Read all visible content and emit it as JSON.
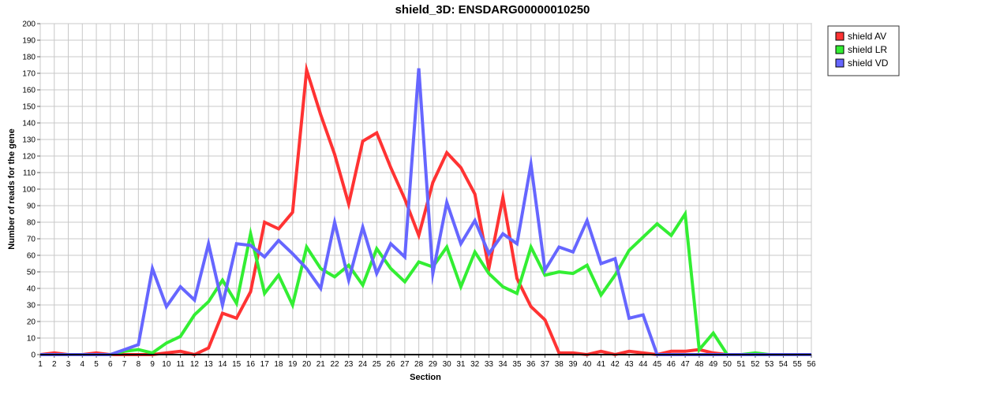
{
  "chart_data": {
    "type": "line",
    "title": "shield_3D: ENSDARG00000010250",
    "xlabel": "Section",
    "ylabel": "Number of reads for the gene",
    "xlim": [
      1,
      56
    ],
    "ylim": [
      0,
      200
    ],
    "y_tick_step": 10,
    "grid": true,
    "legend_placement": "top-right outside",
    "x": [
      1,
      2,
      3,
      4,
      5,
      6,
      7,
      8,
      9,
      10,
      11,
      12,
      13,
      14,
      15,
      16,
      17,
      18,
      19,
      20,
      21,
      22,
      23,
      24,
      25,
      26,
      27,
      28,
      29,
      30,
      31,
      32,
      33,
      34,
      35,
      36,
      37,
      38,
      39,
      40,
      41,
      42,
      43,
      44,
      45,
      46,
      47,
      48,
      49,
      50,
      51,
      52,
      53,
      54,
      55,
      56
    ],
    "series": [
      {
        "name": "shield AV",
        "color": "#ff3333",
        "values": [
          0,
          1,
          0,
          0,
          1,
          0,
          0,
          0,
          0,
          1,
          2,
          0,
          4,
          25,
          22,
          38,
          80,
          76,
          86,
          172,
          145,
          121,
          91,
          129,
          134,
          113,
          94,
          72,
          104,
          122,
          113,
          97,
          52,
          95,
          46,
          29,
          21,
          1,
          1,
          0,
          2,
          0,
          2,
          1,
          0,
          2,
          2,
          3,
          1,
          0,
          0,
          0,
          0,
          0,
          0,
          0
        ]
      },
      {
        "name": "shield LR",
        "color": "#33ee33",
        "values": [
          0,
          0,
          0,
          0,
          0,
          0,
          2,
          3,
          1,
          7,
          11,
          24,
          32,
          45,
          31,
          73,
          37,
          48,
          30,
          65,
          52,
          47,
          54,
          42,
          64,
          52,
          44,
          56,
          53,
          65,
          41,
          62,
          49,
          41,
          37,
          65,
          48,
          50,
          49,
          54,
          36,
          48,
          63,
          71,
          79,
          72,
          85,
          3,
          13,
          0,
          0,
          1,
          0,
          0,
          0,
          0
        ]
      },
      {
        "name": "shield VD",
        "color": "#6666ff",
        "values": [
          0,
          0,
          0,
          0,
          0,
          0,
          3,
          6,
          52,
          29,
          41,
          33,
          67,
          30,
          67,
          66,
          59,
          69,
          61,
          52,
          40,
          80,
          45,
          77,
          49,
          67,
          59,
          173,
          49,
          92,
          67,
          81,
          61,
          73,
          67,
          115,
          51,
          65,
          62,
          81,
          55,
          58,
          22,
          24,
          0,
          0,
          0,
          0,
          0,
          0,
          0,
          0,
          0,
          0,
          0,
          0
        ]
      }
    ]
  }
}
